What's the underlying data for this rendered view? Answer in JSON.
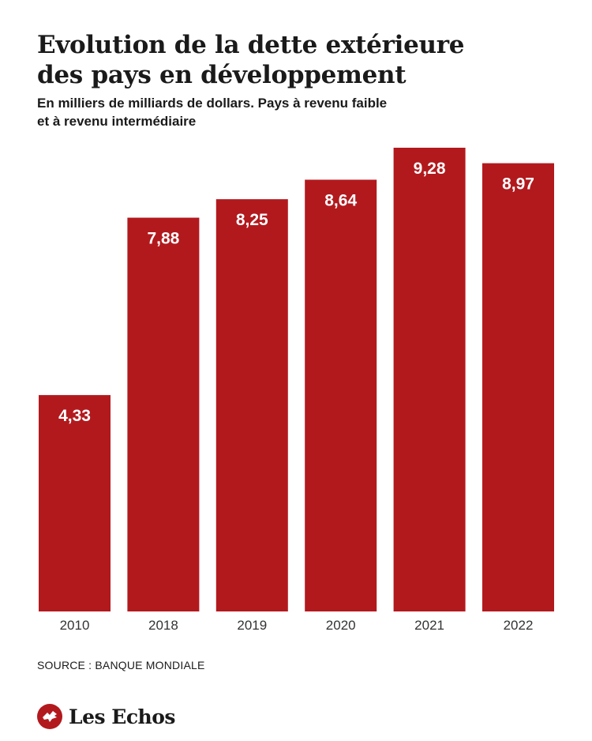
{
  "header": {
    "title_line1": "Evolution de la dette extérieure",
    "title_line2": "des pays en développement",
    "subtitle_line1": "En milliers de milliards de dollars. Pays à revenu faible",
    "subtitle_line2": "et à revenu intermédiaire"
  },
  "footer": {
    "source": "SOURCE : BANQUE MONDIALE",
    "brand": "Les Echos"
  },
  "colors": {
    "bar": "#b2191d",
    "bar_label": "#ffffff",
    "axis_label": "#333333",
    "brand": "#b2191d"
  },
  "chart_data": {
    "type": "bar",
    "title": "Evolution de la dette extérieure des pays en développement",
    "subtitle": "En milliers de milliards de dollars. Pays à revenu faible et à revenu intermédiaire",
    "categories": [
      "2010",
      "2018",
      "2019",
      "2020",
      "2021",
      "2022"
    ],
    "values": [
      4.33,
      7.88,
      8.25,
      8.64,
      9.28,
      8.97
    ],
    "value_labels": [
      "4,33",
      "7,88",
      "8,25",
      "8,64",
      "9,28",
      "8,97"
    ],
    "xlabel": "",
    "ylabel": "",
    "ylim": [
      0,
      9.28
    ],
    "grid": false,
    "legend": "none",
    "data_labels": "inside-top"
  }
}
